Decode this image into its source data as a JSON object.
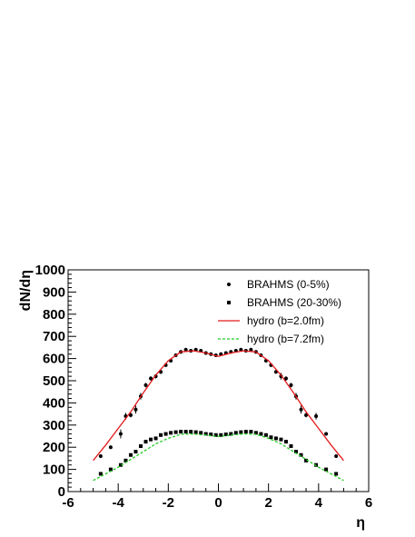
{
  "chart_data": {
    "type": "scatter",
    "title": "",
    "xlabel": "η",
    "ylabel": "dN/dη",
    "xlim": [
      -6,
      6
    ],
    "ylim": [
      0,
      1000
    ],
    "xticks": [
      -6,
      -4,
      -2,
      0,
      2,
      4,
      6
    ],
    "yticks": [
      0,
      100,
      200,
      300,
      400,
      500,
      600,
      700,
      800,
      900,
      1000
    ],
    "grid": false,
    "legend_position": "top-right",
    "series": [
      {
        "name": "BRAHMS (0-5%)",
        "kind": "points",
        "marker": "circle",
        "color": "#000000",
        "x": [
          -4.7,
          -4.3,
          -3.9,
          -3.7,
          -3.5,
          -3.3,
          -3.1,
          -2.9,
          -2.7,
          -2.5,
          -2.3,
          -2.1,
          -1.9,
          -1.7,
          -1.5,
          -1.3,
          -1.1,
          -0.9,
          -0.7,
          -0.5,
          -0.3,
          -0.1,
          0.1,
          0.3,
          0.5,
          0.7,
          0.9,
          1.1,
          1.3,
          1.5,
          1.7,
          1.9,
          2.1,
          2.3,
          2.5,
          2.7,
          2.9,
          3.1,
          3.3,
          3.5,
          3.9,
          4.3,
          4.7
        ],
        "y": [
          160,
          200,
          260,
          340,
          345,
          370,
          430,
          480,
          510,
          520,
          540,
          570,
          590,
          615,
          630,
          640,
          635,
          640,
          635,
          625,
          620,
          615,
          620,
          625,
          630,
          635,
          640,
          635,
          640,
          630,
          615,
          590,
          570,
          540,
          520,
          510,
          480,
          430,
          370,
          345,
          340,
          260,
          160
        ],
        "yerr": [
          8,
          8,
          20,
          15,
          10,
          18,
          15,
          10,
          10,
          10,
          10,
          8,
          8,
          8,
          8,
          8,
          8,
          8,
          8,
          8,
          8,
          8,
          8,
          8,
          8,
          8,
          8,
          8,
          8,
          8,
          8,
          8,
          8,
          8,
          15,
          10,
          10,
          15,
          18,
          10,
          15,
          8,
          8
        ]
      },
      {
        "name": "BRAHMS (20-30%)",
        "kind": "points",
        "marker": "square",
        "color": "#000000",
        "x": [
          -4.7,
          -4.3,
          -3.9,
          -3.7,
          -3.5,
          -3.3,
          -3.1,
          -2.9,
          -2.7,
          -2.5,
          -2.3,
          -2.1,
          -1.9,
          -1.7,
          -1.5,
          -1.3,
          -1.1,
          -0.9,
          -0.7,
          -0.5,
          -0.3,
          -0.1,
          0.1,
          0.3,
          0.5,
          0.7,
          0.9,
          1.1,
          1.3,
          1.5,
          1.7,
          1.9,
          2.1,
          2.3,
          2.5,
          2.7,
          2.9,
          3.1,
          3.3,
          3.5,
          3.9,
          4.3,
          4.7
        ],
        "y": [
          80,
          100,
          120,
          140,
          165,
          180,
          205,
          225,
          235,
          240,
          255,
          260,
          265,
          268,
          270,
          270,
          270,
          268,
          265,
          260,
          258,
          255,
          255,
          258,
          260,
          265,
          268,
          270,
          270,
          265,
          260,
          255,
          245,
          240,
          235,
          225,
          205,
          180,
          165,
          140,
          120,
          100,
          80
        ],
        "yerr": [
          0,
          0,
          0,
          0,
          0,
          0,
          0,
          0,
          0,
          0,
          0,
          0,
          0,
          0,
          0,
          0,
          0,
          0,
          0,
          0,
          0,
          0,
          0,
          0,
          0,
          0,
          0,
          0,
          0,
          0,
          0,
          0,
          0,
          0,
          0,
          0,
          0,
          0,
          0,
          0,
          0,
          0,
          0
        ]
      },
      {
        "name": "hydro (b=2.0fm)",
        "kind": "line",
        "style": "solid",
        "color": "#e31a1c",
        "x": [
          -5,
          -4.5,
          -4,
          -3.5,
          -3,
          -2.5,
          -2,
          -1.5,
          -1,
          -0.5,
          0,
          0.5,
          1,
          1.5,
          2,
          2.5,
          3,
          3.5,
          4,
          4.5,
          5
        ],
        "y": [
          140,
          210,
          285,
          360,
          445,
          525,
          590,
          630,
          635,
          625,
          610,
          625,
          635,
          630,
          590,
          525,
          445,
          360,
          285,
          210,
          140
        ]
      },
      {
        "name": "hydro (b=7.2fm)",
        "kind": "line",
        "style": "dashed",
        "color": "#22cc22",
        "x": [
          -5,
          -4.5,
          -4,
          -3.5,
          -3,
          -2.5,
          -2,
          -1.5,
          -1,
          -0.5,
          0,
          0.5,
          1,
          1.5,
          2,
          2.5,
          3,
          3.5,
          4,
          4.5,
          5
        ],
        "y": [
          50,
          80,
          110,
          145,
          180,
          215,
          240,
          258,
          260,
          255,
          248,
          255,
          260,
          258,
          240,
          215,
          180,
          145,
          110,
          80,
          50
        ]
      }
    ]
  }
}
